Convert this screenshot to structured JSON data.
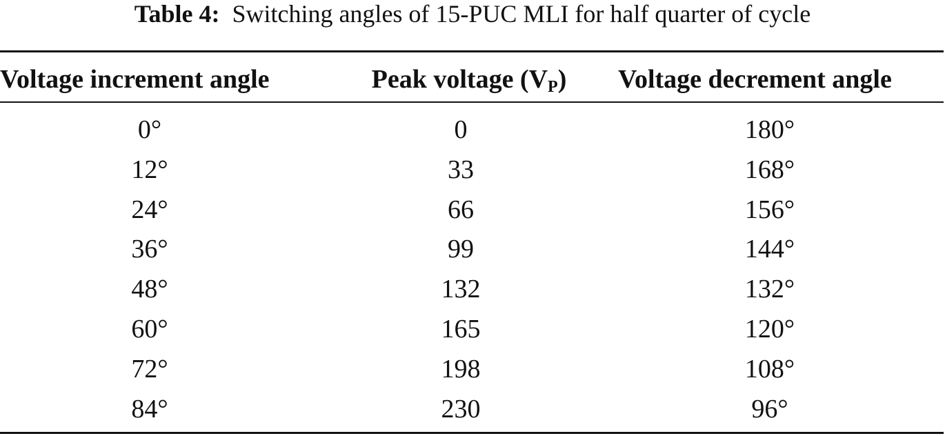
{
  "caption": {
    "label": "Table 4:",
    "text": "Switching angles of 15-PUC MLI for half quarter of cycle"
  },
  "table": {
    "headers": {
      "col0": "Voltage increment angle",
      "col1_main": "Peak voltage (V",
      "col1_sub": "P",
      "col1_close": ")",
      "col2": "Voltage decrement angle"
    },
    "rows": [
      [
        "0°",
        "0",
        "180°"
      ],
      [
        "12°",
        "33",
        "168°"
      ],
      [
        "24°",
        "66",
        "156°"
      ],
      [
        "36°",
        "99",
        "144°"
      ],
      [
        "48°",
        "132",
        "132°"
      ],
      [
        "60°",
        "165",
        "120°"
      ],
      [
        "72°",
        "198",
        "108°"
      ],
      [
        "84°",
        "230",
        "96°"
      ]
    ]
  }
}
